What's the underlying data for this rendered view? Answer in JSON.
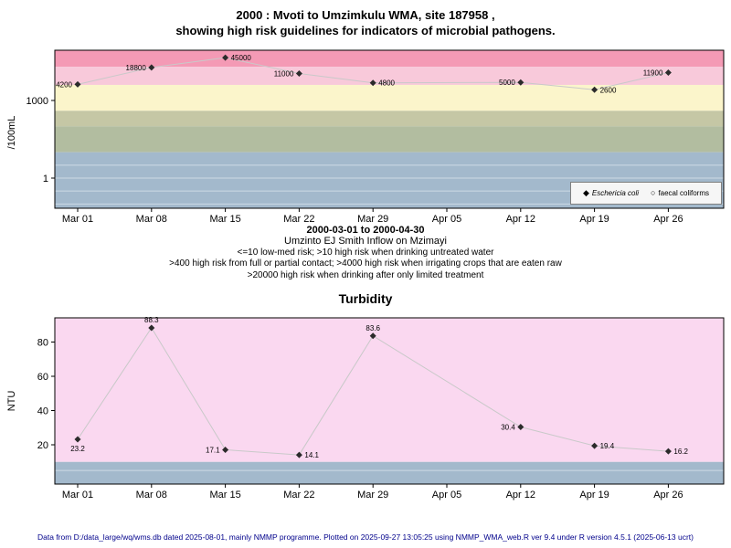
{
  "page": {
    "footer": "Data from D:/data_large/wq/wms.db dated 2025-08-01, mainly NMMP programme. Plotted on 2025-09-27 13:05:25 using NMMP_WMA_web.R ver 9.4 under R version 4.5.1 (2025-06-13 ucrt)"
  },
  "icons": {
    "filled_diamond": "◆",
    "open_circle": "○"
  },
  "chart_data": [
    {
      "id": "microbial",
      "type": "line",
      "yscale": "log",
      "title_lines": [
        "2000 : Mvoti to Umzimkulu WMA, site 187958 ,",
        "showing high risk guidelines for indicators of microbial pathogens."
      ],
      "ylabel": "/100mL",
      "categories": [
        "Mar 01",
        "Mar 08",
        "Mar 15",
        "Mar 22",
        "Mar 29",
        "Apr 05",
        "Apr 12",
        "Apr 19",
        "Apr 26"
      ],
      "y_ticks": [
        {
          "v": 1000,
          "label": "1000"
        },
        {
          "v": 1,
          "label": "1"
        }
      ],
      "ylim": [
        0.07,
        89000
      ],
      "grid": false,
      "legend_position": "bottom-right",
      "legend": [
        "Eschericia coli",
        "faecal coliforms"
      ],
      "series": [
        {
          "name": "Eschericia coli",
          "marker": "filled-diamond",
          "points": [
            {
              "i": 0,
              "x": "Mar 01",
              "v": 4200,
              "label": "4200",
              "side": "left"
            },
            {
              "i": 1,
              "x": "Mar 08",
              "v": 18800,
              "label": "18800",
              "side": "left"
            },
            {
              "i": 2,
              "x": "Mar 15",
              "v": 45000,
              "label": "45000",
              "side": "right"
            },
            {
              "i": 3,
              "x": "Mar 22",
              "v": 11000,
              "label": "11000",
              "side": "left"
            },
            {
              "i": 4,
              "x": "Mar 29",
              "v": 4800,
              "label": "4800",
              "side": "right"
            },
            {
              "i": 6,
              "x": "Apr 12",
              "v": 5000,
              "label": "5000",
              "side": "left"
            },
            {
              "i": 7,
              "x": "Apr 19",
              "v": 2600,
              "label": "2600",
              "side": "right"
            },
            {
              "i": 8,
              "x": "Apr 26",
              "v": 11900,
              "label": "11900",
              "side": "left"
            }
          ]
        },
        {
          "name": "faecal coliforms",
          "marker": "open-circle",
          "points": []
        }
      ],
      "bands": [
        {
          "label": ">20000",
          "from": 20000,
          "to": null,
          "color": "#f49ab5"
        },
        {
          "label": "4000-20000",
          "from": 4000,
          "to": 20000,
          "color": "#f8c9da"
        },
        {
          "label": "400-4000",
          "from": 400,
          "to": 4000,
          "color": "#fbf5cb"
        },
        {
          "label": "100-400",
          "from": 100,
          "to": 400,
          "color": "#c5c7a5"
        },
        {
          "label": "10-100",
          "from": 10,
          "to": 100,
          "color": "#b2bda0"
        },
        {
          "label": "<=10",
          "from": null,
          "to": 10,
          "color": "#a3b9cc"
        }
      ],
      "stripe_lines_log": [
        0.5,
        0,
        -0.5,
        -1
      ],
      "captions": [
        "2000-03-01 to 2000-04-30",
        "Umzinto EJ Smith Inflow on Mzimayi",
        "<=10 low-med risk; >10 high risk when drinking untreated water",
        ">400 high risk from full or partial contact; >4000 high risk when irrigating crops that are eaten raw",
        ">20000 high risk when drinking after only limited treatment"
      ]
    },
    {
      "id": "turbidity",
      "type": "line",
      "yscale": "linear",
      "title": "Turbidity",
      "ylabel": "NTU",
      "categories": [
        "Mar 01",
        "Mar 08",
        "Mar 15",
        "Mar 22",
        "Mar 29",
        "Apr 05",
        "Apr 12",
        "Apr 19",
        "Apr 26"
      ],
      "y_ticks": [
        20,
        40,
        60,
        80
      ],
      "ylim": [
        -3,
        94
      ],
      "grid": false,
      "series": [
        {
          "name": "Turbidity",
          "marker": "filled-diamond",
          "points": [
            {
              "i": 0,
              "x": "Mar 01",
              "v": 23.2,
              "label": "23.2",
              "side": "below"
            },
            {
              "i": 1,
              "x": "Mar 08",
              "v": 88.3,
              "label": "88.3",
              "side": "above"
            },
            {
              "i": 2,
              "x": "Mar 15",
              "v": 17.1,
              "label": "17.1",
              "side": "left"
            },
            {
              "i": 3,
              "x": "Mar 22",
              "v": 14.1,
              "label": "14.1",
              "side": "right"
            },
            {
              "i": 4,
              "x": "Mar 29",
              "v": 83.6,
              "label": "83.6",
              "side": "above"
            },
            {
              "i": 6,
              "x": "Apr 12",
              "v": 30.4,
              "label": "30.4",
              "side": "left"
            },
            {
              "i": 7,
              "x": "Apr 19",
              "v": 19.4,
              "label": "19.4",
              "side": "right"
            },
            {
              "i": 8,
              "x": "Apr 26",
              "v": 16.2,
              "label": "16.2",
              "side": "right"
            }
          ]
        }
      ],
      "bands": [
        {
          "label": ">10",
          "from": 10,
          "to": null,
          "color": "#fad8f0"
        },
        {
          "label": "<=10",
          "from": null,
          "to": 10,
          "color": "#a3b9cc"
        }
      ],
      "stripe_lines": [
        5
      ]
    }
  ]
}
